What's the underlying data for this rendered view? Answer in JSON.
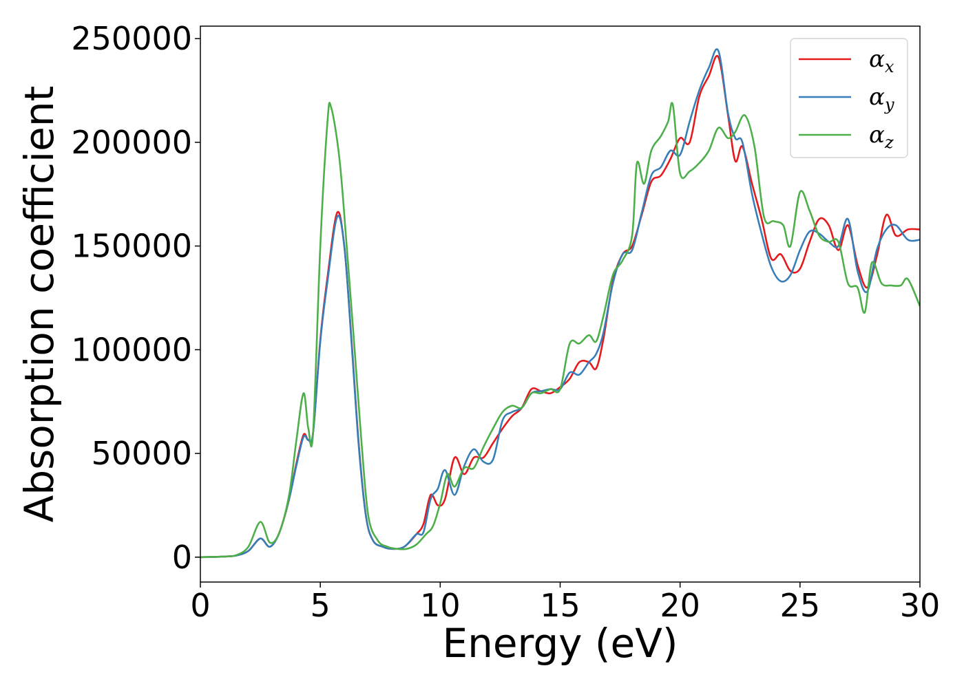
{
  "chart_data": {
    "type": "line",
    "xlabel": "Energy (eV)",
    "ylabel": "Absorption coefficient",
    "xlim": [
      0,
      30
    ],
    "ylim": [
      -12000,
      256000
    ],
    "xticks": [
      0,
      5,
      10,
      15,
      20,
      25,
      30
    ],
    "yticks": [
      0,
      50000,
      100000,
      150000,
      200000,
      250000
    ],
    "grid": false,
    "legend_position": "top-right",
    "series": [
      {
        "name": "α",
        "subscript": "x",
        "color": "#e41a1c",
        "points": [
          [
            0,
            0
          ],
          [
            1,
            300
          ],
          [
            1.5,
            800
          ],
          [
            2,
            3000
          ],
          [
            2.5,
            9000
          ],
          [
            2.9,
            5000
          ],
          [
            3.3,
            12000
          ],
          [
            3.7,
            28000
          ],
          [
            4.0,
            45000
          ],
          [
            4.3,
            59000
          ],
          [
            4.5,
            56500
          ],
          [
            4.7,
            60000
          ],
          [
            5.0,
            105000
          ],
          [
            5.3,
            135000
          ],
          [
            5.7,
            166000
          ],
          [
            6.0,
            150000
          ],
          [
            6.3,
            105000
          ],
          [
            6.6,
            55000
          ],
          [
            6.9,
            20000
          ],
          [
            7.2,
            8000
          ],
          [
            7.6,
            5000
          ],
          [
            8.0,
            4000
          ],
          [
            8.5,
            5000
          ],
          [
            9.0,
            11000
          ],
          [
            9.3,
            16000
          ],
          [
            9.6,
            30000
          ],
          [
            9.9,
            25000
          ],
          [
            10.2,
            28000
          ],
          [
            10.6,
            48000
          ],
          [
            11.0,
            40000
          ],
          [
            11.4,
            48000
          ],
          [
            11.8,
            48000
          ],
          [
            12.2,
            55000
          ],
          [
            12.6,
            62000
          ],
          [
            13.0,
            68000
          ],
          [
            13.4,
            72000
          ],
          [
            13.8,
            81000
          ],
          [
            14.2,
            80000
          ],
          [
            14.6,
            79000
          ],
          [
            15.0,
            82000
          ],
          [
            15.4,
            86000
          ],
          [
            15.8,
            94000
          ],
          [
            16.2,
            94000
          ],
          [
            16.5,
            91000
          ],
          [
            16.8,
            105000
          ],
          [
            17.2,
            133000
          ],
          [
            17.6,
            146000
          ],
          [
            18.0,
            150000
          ],
          [
            18.4,
            165000
          ],
          [
            18.8,
            181000
          ],
          [
            19.2,
            184000
          ],
          [
            19.6,
            192000
          ],
          [
            20.0,
            202000
          ],
          [
            20.4,
            200000
          ],
          [
            20.8,
            222000
          ],
          [
            21.2,
            232000
          ],
          [
            21.6,
            241000
          ],
          [
            22.0,
            213000
          ],
          [
            22.3,
            191000
          ],
          [
            22.6,
            198000
          ],
          [
            23.0,
            180000
          ],
          [
            23.4,
            163000
          ],
          [
            23.8,
            144000
          ],
          [
            24.2,
            146000
          ],
          [
            24.6,
            138000
          ],
          [
            25.0,
            139000
          ],
          [
            25.4,
            152000
          ],
          [
            25.8,
            163000
          ],
          [
            26.2,
            160000
          ],
          [
            26.6,
            148000
          ],
          [
            27.0,
            160000
          ],
          [
            27.4,
            141000
          ],
          [
            27.8,
            130000
          ],
          [
            28.2,
            145000
          ],
          [
            28.6,
            165000
          ],
          [
            29.0,
            155000
          ],
          [
            29.5,
            158000
          ],
          [
            30,
            158000
          ]
        ]
      },
      {
        "name": "α",
        "subscript": "y",
        "color": "#377eb8",
        "points": [
          [
            0,
            0
          ],
          [
            1,
            300
          ],
          [
            1.5,
            800
          ],
          [
            2,
            3000
          ],
          [
            2.5,
            9000
          ],
          [
            2.9,
            5000
          ],
          [
            3.3,
            12000
          ],
          [
            3.7,
            28000
          ],
          [
            4.0,
            44000
          ],
          [
            4.3,
            58000
          ],
          [
            4.5,
            56500
          ],
          [
            4.7,
            60000
          ],
          [
            5.0,
            104000
          ],
          [
            5.3,
            133000
          ],
          [
            5.7,
            164000
          ],
          [
            6.0,
            150000
          ],
          [
            6.3,
            104000
          ],
          [
            6.6,
            54000
          ],
          [
            6.9,
            20000
          ],
          [
            7.2,
            8000
          ],
          [
            7.6,
            5000
          ],
          [
            8.0,
            4000
          ],
          [
            8.5,
            5000
          ],
          [
            9.0,
            11000
          ],
          [
            9.3,
            12000
          ],
          [
            9.6,
            28000
          ],
          [
            9.9,
            33000
          ],
          [
            10.2,
            42000
          ],
          [
            10.6,
            30000
          ],
          [
            11.0,
            44000
          ],
          [
            11.4,
            52000
          ],
          [
            11.8,
            46000
          ],
          [
            12.2,
            47000
          ],
          [
            12.6,
            66000
          ],
          [
            13.0,
            70000
          ],
          [
            13.4,
            72000
          ],
          [
            13.8,
            79000
          ],
          [
            14.2,
            80000
          ],
          [
            14.6,
            81000
          ],
          [
            15.0,
            81000
          ],
          [
            15.4,
            89000
          ],
          [
            15.8,
            88000
          ],
          [
            16.2,
            94000
          ],
          [
            16.5,
            98000
          ],
          [
            16.8,
            108000
          ],
          [
            17.2,
            132000
          ],
          [
            17.6,
            146000
          ],
          [
            18.0,
            148000
          ],
          [
            18.4,
            166000
          ],
          [
            18.8,
            184000
          ],
          [
            19.2,
            188000
          ],
          [
            19.6,
            196000
          ],
          [
            20.0,
            194000
          ],
          [
            20.4,
            210000
          ],
          [
            20.8,
            225000
          ],
          [
            21.2,
            236000
          ],
          [
            21.6,
            244000
          ],
          [
            22.0,
            214000
          ],
          [
            22.3,
            202000
          ],
          [
            22.6,
            200000
          ],
          [
            23.0,
            175000
          ],
          [
            23.4,
            156000
          ],
          [
            23.8,
            140000
          ],
          [
            24.2,
            133000
          ],
          [
            24.6,
            136000
          ],
          [
            25.0,
            148000
          ],
          [
            25.4,
            157000
          ],
          [
            25.8,
            156000
          ],
          [
            26.2,
            152000
          ],
          [
            26.6,
            150000
          ],
          [
            27.0,
            163000
          ],
          [
            27.4,
            138000
          ],
          [
            27.8,
            128000
          ],
          [
            28.2,
            148000
          ],
          [
            28.6,
            158000
          ],
          [
            29.0,
            160000
          ],
          [
            29.5,
            153000
          ],
          [
            30,
            153000
          ]
        ]
      },
      {
        "name": "α",
        "subscript": "z",
        "color": "#4daf4a",
        "points": [
          [
            0,
            0
          ],
          [
            1,
            300
          ],
          [
            1.5,
            1000
          ],
          [
            2,
            5000
          ],
          [
            2.5,
            17000
          ],
          [
            2.9,
            7000
          ],
          [
            3.3,
            12000
          ],
          [
            3.7,
            30000
          ],
          [
            4.0,
            56000
          ],
          [
            4.3,
            79000
          ],
          [
            4.5,
            62000
          ],
          [
            4.7,
            60000
          ],
          [
            5.0,
            150000
          ],
          [
            5.3,
            210000
          ],
          [
            5.45,
            217000
          ],
          [
            5.8,
            192000
          ],
          [
            6.1,
            150000
          ],
          [
            6.4,
            105000
          ],
          [
            6.7,
            58000
          ],
          [
            7.0,
            20000
          ],
          [
            7.4,
            8000
          ],
          [
            7.8,
            5000
          ],
          [
            8.2,
            4000
          ],
          [
            8.6,
            4000
          ],
          [
            9.0,
            6000
          ],
          [
            9.4,
            11000
          ],
          [
            9.7,
            15000
          ],
          [
            10.0,
            26000
          ],
          [
            10.3,
            40000
          ],
          [
            10.6,
            34000
          ],
          [
            11.0,
            43000
          ],
          [
            11.4,
            43000
          ],
          [
            11.8,
            53000
          ],
          [
            12.2,
            62000
          ],
          [
            12.6,
            70000
          ],
          [
            13.0,
            73000
          ],
          [
            13.4,
            72000
          ],
          [
            13.8,
            79000
          ],
          [
            14.2,
            79000
          ],
          [
            14.6,
            81000
          ],
          [
            15.0,
            81000
          ],
          [
            15.4,
            103000
          ],
          [
            15.8,
            103000
          ],
          [
            16.2,
            107000
          ],
          [
            16.5,
            104000
          ],
          [
            16.8,
            116000
          ],
          [
            17.2,
            136000
          ],
          [
            17.6,
            143000
          ],
          [
            18.0,
            155000
          ],
          [
            18.2,
            190000
          ],
          [
            18.5,
            180000
          ],
          [
            18.8,
            196000
          ],
          [
            19.2,
            203000
          ],
          [
            19.5,
            210000
          ],
          [
            19.7,
            218000
          ],
          [
            20.0,
            185000
          ],
          [
            20.4,
            186000
          ],
          [
            20.8,
            190000
          ],
          [
            21.2,
            196000
          ],
          [
            21.6,
            207000
          ],
          [
            22.0,
            202000
          ],
          [
            22.3,
            205000
          ],
          [
            22.7,
            213000
          ],
          [
            23.1,
            198000
          ],
          [
            23.5,
            164000
          ],
          [
            23.9,
            162000
          ],
          [
            24.3,
            160000
          ],
          [
            24.6,
            150000
          ],
          [
            25.0,
            176000
          ],
          [
            25.4,
            167000
          ],
          [
            25.8,
            155000
          ],
          [
            26.2,
            152000
          ],
          [
            26.6,
            152000
          ],
          [
            27.0,
            132000
          ],
          [
            27.4,
            130000
          ],
          [
            27.7,
            118000
          ],
          [
            28.0,
            142000
          ],
          [
            28.4,
            132000
          ],
          [
            28.8,
            131000
          ],
          [
            29.2,
            131000
          ],
          [
            29.5,
            134000
          ],
          [
            30,
            121000
          ]
        ]
      }
    ]
  }
}
